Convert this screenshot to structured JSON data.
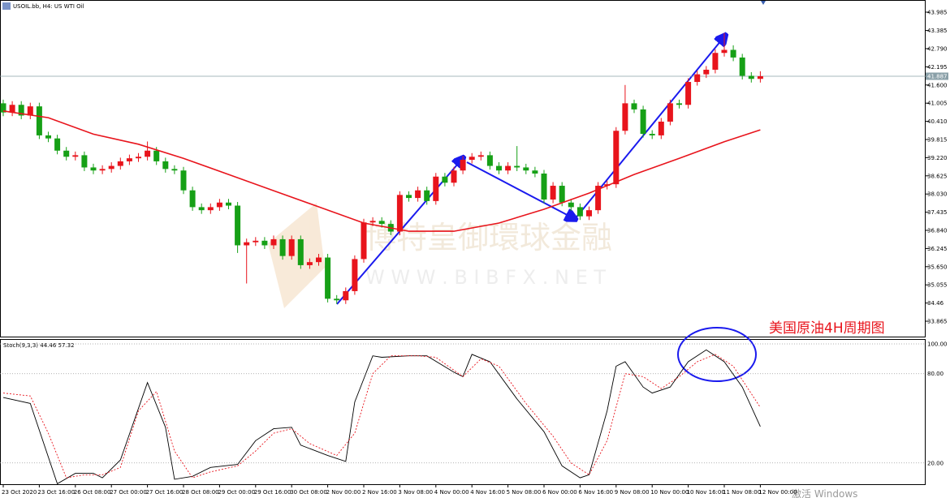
{
  "chart_data": [
    {
      "type": "candlestick",
      "title": "USOIL.bb, H4: US WTI Oil",
      "categories": [
        "23 Oct 2020",
        null,
        null,
        null,
        "23 Oct 16:00",
        null,
        null,
        null,
        "26 Oct 08:00",
        null,
        null,
        null,
        "27 Oct 00:00",
        null,
        null,
        null,
        "27 Oct 16:00",
        null,
        null,
        null,
        "28 Oct 08:00",
        null,
        null,
        null,
        "29 Oct 00:00",
        null,
        null,
        null,
        "29 Oct 16:00",
        null,
        null,
        null,
        "30 Oct 08:00",
        null,
        null,
        null,
        "2 Nov 00:00",
        null,
        null,
        null,
        "2 Nov 16:00",
        null,
        null,
        null,
        "3 Nov 08:00",
        null,
        null,
        null,
        "4 Nov 00:00",
        null,
        null,
        null,
        "4 Nov 16:00",
        null,
        null,
        null,
        "5 Nov 08:00",
        null,
        null,
        null,
        "6 Nov 00:00",
        null,
        null,
        null,
        "6 Nov 16:00",
        null,
        null,
        null,
        "9 Nov 08:00",
        null,
        null,
        null,
        "10 Nov 00:00",
        null,
        null,
        null,
        "10 Nov 16:00",
        null,
        null,
        null,
        "11 Nov 08:00",
        null,
        null,
        null,
        "12 Nov 00:00"
      ],
      "open": [
        41.0,
        40.7,
        40.95,
        40.6,
        40.9,
        39.95,
        39.85,
        39.45,
        39.25,
        39.3,
        38.9,
        38.8,
        38.85,
        38.95,
        39.1,
        39.2,
        39.25,
        39.45,
        39.1,
        38.85,
        38.8,
        38.15,
        37.6,
        37.5,
        37.6,
        37.75,
        37.65,
        36.35,
        36.45,
        36.5,
        36.35,
        36.55,
        36.0,
        36.55,
        35.7,
        35.8,
        35.95,
        34.6,
        34.55,
        34.85,
        35.9,
        37.1,
        37.15,
        37.05,
        36.8,
        38.0,
        37.9,
        38.15,
        37.8,
        38.6,
        38.4,
        38.8,
        39.15,
        39.25,
        39.3,
        38.95,
        38.8,
        38.95,
        38.9,
        38.8,
        38.7,
        37.85,
        38.3,
        37.75,
        37.6,
        37.3,
        37.5,
        38.3,
        38.35,
        40.1,
        41.0,
        40.8,
        40.0,
        39.95,
        40.4,
        41.0,
        40.95,
        41.7,
        41.95,
        42.1,
        42.65,
        42.75,
        42.5,
        41.9,
        41.8
      ],
      "high": [
        41.12,
        41.07,
        41.07,
        41.02,
        41.02,
        40.07,
        39.97,
        39.57,
        39.42,
        39.42,
        39.02,
        38.97,
        39.07,
        39.22,
        39.32,
        39.37,
        39.75,
        39.57,
        39.22,
        38.97,
        38.92,
        38.27,
        37.72,
        37.72,
        37.87,
        37.87,
        37.77,
        36.57,
        36.62,
        36.62,
        36.67,
        36.67,
        36.67,
        36.67,
        35.92,
        36.07,
        36.07,
        34.72,
        34.97,
        36.02,
        37.22,
        37.27,
        37.27,
        37.17,
        38.12,
        38.12,
        38.27,
        38.27,
        38.72,
        38.72,
        38.92,
        39.27,
        39.37,
        39.42,
        39.42,
        39.07,
        39.07,
        39.6,
        39.02,
        38.92,
        38.82,
        38.42,
        38.42,
        37.87,
        37.72,
        37.62,
        38.42,
        38.47,
        40.22,
        41.6,
        41.12,
        40.92,
        40.12,
        40.52,
        41.12,
        41.12,
        41.82,
        42.07,
        42.22,
        42.77,
        43.3,
        42.9,
        42.62,
        42.02,
        42.05
      ],
      "low": [
        40.58,
        40.58,
        40.48,
        40.48,
        39.83,
        39.73,
        39.33,
        39.13,
        39.13,
        38.78,
        38.68,
        38.68,
        38.73,
        38.83,
        38.98,
        39.08,
        39.13,
        38.98,
        38.73,
        38.68,
        38.03,
        37.48,
        37.38,
        37.38,
        37.48,
        37.53,
        36.1,
        35.1,
        36.33,
        36.23,
        36.23,
        35.88,
        35.88,
        35.58,
        35.58,
        35.68,
        34.48,
        34.43,
        34.43,
        34.73,
        35.78,
        36.98,
        36.93,
        36.68,
        36.68,
        37.78,
        37.78,
        37.68,
        37.68,
        38.28,
        38.28,
        38.68,
        39.03,
        39.13,
        38.83,
        38.68,
        38.68,
        38.78,
        38.68,
        38.58,
        37.73,
        37.73,
        37.63,
        37.48,
        37.18,
        37.18,
        37.38,
        38.18,
        38.23,
        39.98,
        40.68,
        39.88,
        39.83,
        39.83,
        40.28,
        40.83,
        40.83,
        41.58,
        41.83,
        41.98,
        42.53,
        42.38,
        41.78,
        41.68,
        41.68
      ],
      "close": [
        40.7,
        40.95,
        40.6,
        40.9,
        39.95,
        39.85,
        39.45,
        39.25,
        39.3,
        38.9,
        38.8,
        38.85,
        38.95,
        39.1,
        39.2,
        39.25,
        39.45,
        39.1,
        38.85,
        38.8,
        38.15,
        37.6,
        37.5,
        37.6,
        37.75,
        37.65,
        36.35,
        36.45,
        36.5,
        36.35,
        36.55,
        36.0,
        36.55,
        35.7,
        35.8,
        35.95,
        34.6,
        34.55,
        34.85,
        35.9,
        37.1,
        37.15,
        37.05,
        36.8,
        38.0,
        37.9,
        38.15,
        37.8,
        38.6,
        38.4,
        38.8,
        39.15,
        39.25,
        39.3,
        38.95,
        38.8,
        38.95,
        38.9,
        38.8,
        38.7,
        37.85,
        38.3,
        37.75,
        37.6,
        37.3,
        37.5,
        38.3,
        38.35,
        40.1,
        41.0,
        40.8,
        40.0,
        39.95,
        40.4,
        41.0,
        40.95,
        41.7,
        41.95,
        42.1,
        42.65,
        42.75,
        42.5,
        41.9,
        41.8,
        41.887
      ],
      "up_color": "#e8141c",
      "down_color": "#16a016",
      "moving_average": {
        "color": "#e8141c",
        "x": [
          0,
          5,
          10,
          15,
          20,
          25,
          30,
          35,
          40,
          45,
          50,
          55,
          60,
          65,
          70,
          75,
          80,
          84
        ],
        "values": [
          40.75,
          40.53,
          39.99,
          39.66,
          39.2,
          38.67,
          38.14,
          37.61,
          37.08,
          36.81,
          36.81,
          37.08,
          37.53,
          38.06,
          38.67,
          39.2,
          39.74,
          40.13
        ]
      },
      "ylim": [
        33.361,
        44.383
      ],
      "yticks": [
        43.985,
        43.385,
        {
          "value": 42.79,
          "label": "42.790"
        },
        42.195,
        {
          "value": 41.6,
          "label": "41.600"
        },
        41.005,
        {
          "value": 40.41,
          "label": "40.410"
        },
        39.815,
        {
          "value": 39.22,
          "label": "39.220"
        },
        38.625,
        {
          "value": 38.03,
          "label": "38.030"
        },
        37.435,
        {
          "value": 36.84,
          "label": "36.840"
        },
        36.245,
        {
          "value": 35.65,
          "label": "35.650"
        },
        35.055,
        34.46,
        33.865
      ],
      "current_price": 41.887,
      "annotation": "美国原油4H周期图",
      "watermark": [
        "博特皇御環球金融",
        "W W W . B I B F X . N E T"
      ],
      "system_watermark": "激活 Windows"
    },
    {
      "type": "line",
      "title": "Stoch(9,3,3) 44.46 57.32",
      "series": [
        {
          "color": "#000000",
          "dash": false,
          "x": [
            0,
            3,
            6,
            8,
            10,
            11,
            13,
            16,
            18,
            19,
            21,
            23,
            26,
            28,
            30,
            32,
            33,
            36,
            38,
            39,
            41,
            42,
            45,
            47,
            50,
            51,
            52,
            54,
            57,
            60,
            62,
            64,
            65,
            67,
            68,
            69,
            71,
            72,
            74,
            76,
            78,
            80,
            82,
            84
          ],
          "values": [
            64,
            60,
            6,
            13,
            13,
            10,
            22,
            74,
            44,
            9,
            11,
            17,
            19,
            35,
            43,
            44,
            32,
            25,
            21,
            61,
            92,
            91,
            92,
            92,
            81,
            78,
            93,
            88,
            63,
            41,
            18,
            10,
            12,
            55,
            85,
            88,
            71,
            67,
            71,
            88,
            96,
            88,
            71,
            44.46
          ]
        },
        {
          "color": "#e8141c",
          "dash": true,
          "x": [
            0,
            3,
            5,
            7,
            9,
            11,
            13,
            15,
            17,
            19,
            21,
            23,
            26,
            28,
            30,
            32,
            34,
            37,
            39,
            41,
            43,
            46,
            48,
            51,
            53,
            55,
            58,
            61,
            63,
            65,
            67,
            69,
            71,
            73,
            75,
            77,
            79,
            81,
            84
          ],
          "values": [
            67,
            65,
            40,
            10,
            12,
            12,
            17,
            55,
            68,
            28,
            10,
            14,
            18,
            28,
            40,
            43,
            33,
            25,
            40,
            80,
            92,
            92,
            91,
            78,
            90,
            85,
            60,
            38,
            20,
            12,
            35,
            80,
            78,
            70,
            78,
            88,
            93,
            85,
            57.32
          ]
        }
      ],
      "ylim": [
        5.7,
        102.2
      ],
      "yticks": [
        {
          "value": 100,
          "label": "100.00"
        },
        {
          "value": 80,
          "label": "80.00"
        },
        {
          "value": 20,
          "label": "20.00"
        }
      ],
      "grid": true
    }
  ]
}
